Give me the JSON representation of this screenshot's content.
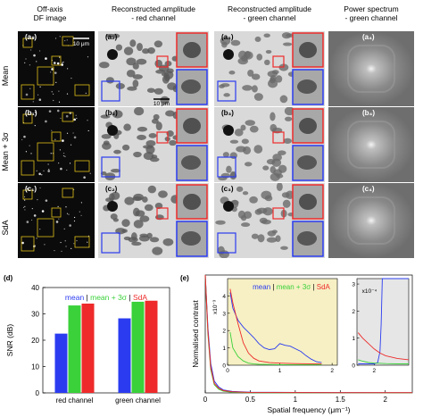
{
  "headers": {
    "col1": [
      "Off-axis",
      "DF image"
    ],
    "col2": [
      "Reconstructed amplitude",
      "- red channel"
    ],
    "col3": [
      "Reconstructed amplitude",
      "- green channel"
    ],
    "col4": [
      "Power spectrum",
      "- green channel"
    ]
  },
  "rows": [
    {
      "label": "Mean",
      "panels": [
        "(a₁)",
        "(a₂)",
        "(a₃)",
        "(a₄)"
      ]
    },
    {
      "label": "Mean + 3σ",
      "panels": [
        "(b₁)",
        "(b₂)",
        "(b₃)",
        "(b₄)"
      ]
    },
    {
      "label": "SdA",
      "panels": [
        "(c₁)",
        "(c₂)",
        "(c₃)",
        "(c₄)"
      ]
    }
  ],
  "scalebars": {
    "df": "10 μm",
    "amp": "10 μm"
  },
  "panel_d_label": "(d)",
  "panel_e_label": "(e)",
  "colors": {
    "mean": "#2b3cf0",
    "mean3s": "#3ad13a",
    "sda": "#ee2a2a",
    "inset_bg": "#f6f0c4",
    "zoom_box_red": "#ee2a2a",
    "zoom_box_blue": "#2b3cf0",
    "roi_box": "#e0c01a"
  },
  "chart_data": [
    {
      "type": "bar",
      "panel": "(d)",
      "categories": [
        "red channel",
        "green channel"
      ],
      "series": [
        {
          "name": "mean",
          "values": [
            22.5,
            28.3
          ]
        },
        {
          "name": "mean + 3σ",
          "values": [
            33.2,
            34.6
          ]
        },
        {
          "name": "SdA",
          "values": [
            33.9,
            35.0
          ]
        }
      ],
      "ylabel": "SNR (dB)",
      "xlabel": "",
      "ylim": [
        0,
        40
      ],
      "yticks": [
        0,
        10,
        20,
        30,
        40
      ],
      "legend": "top (inline: mean | mean + 3σ | SdA)"
    },
    {
      "type": "line",
      "panel": "(e)",
      "xlabel": "Spatial frequency (μm⁻¹)",
      "ylabel": "Normalised contrast",
      "xlim": [
        0,
        2.3
      ],
      "xticks": [
        0,
        0.5,
        1,
        1.5,
        2
      ],
      "ylim": [
        0,
        1
      ],
      "series": [
        {
          "name": "mean",
          "x": [
            0,
            0.03,
            0.06,
            0.1,
            0.15,
            0.2,
            0.3,
            0.5,
            1.0,
            1.5,
            2.0,
            2.3
          ],
          "y": [
            1,
            0.55,
            0.25,
            0.1,
            0.05,
            0.025,
            0.012,
            0.006,
            0.004,
            0.003,
            0.002,
            0.002
          ]
        },
        {
          "name": "mean + 3σ",
          "x": [
            0,
            0.03,
            0.06,
            0.1,
            0.15,
            0.2,
            0.3,
            0.5,
            1.0,
            1.5,
            2.0,
            2.3
          ],
          "y": [
            1,
            0.5,
            0.2,
            0.07,
            0.03,
            0.015,
            0.006,
            0.002,
            0.001,
            0.001,
            0.001,
            0.001
          ]
        },
        {
          "name": "SdA",
          "x": [
            0,
            0.03,
            0.06,
            0.1,
            0.15,
            0.2,
            0.3,
            0.5,
            1.0,
            1.5,
            2.0,
            2.3
          ],
          "y": [
            1,
            0.52,
            0.22,
            0.08,
            0.04,
            0.02,
            0.009,
            0.004,
            0.003,
            0.002,
            0.002,
            0.002
          ]
        }
      ],
      "inset1": {
        "ylabel": "x10⁻³",
        "xlim": [
          0,
          2.1
        ],
        "xticks": [
          0,
          1,
          2
        ],
        "ylim": [
          0,
          5
        ],
        "yticks": [
          0,
          1,
          2,
          3,
          4
        ],
        "legend": "top (inline: mean | mean + 3σ | SdA)",
        "series": [
          {
            "name": "mean",
            "x": [
              0.05,
              0.1,
              0.2,
              0.3,
              0.4,
              0.5,
              0.6,
              0.7,
              0.8,
              0.9,
              1.0,
              1.1,
              1.2,
              1.3,
              1.4,
              1.5,
              1.6,
              1.7,
              1.8
            ],
            "y": [
              4.2,
              3.3,
              2.6,
              2.2,
              1.9,
              1.6,
              1.25,
              1.0,
              0.9,
              0.95,
              1.25,
              1.15,
              1.1,
              0.95,
              0.8,
              0.55,
              0.35,
              0.2,
              0.15
            ]
          },
          {
            "name": "mean + 3σ",
            "x": [
              0.05,
              0.1,
              0.2,
              0.3,
              0.4,
              0.5,
              0.6,
              0.8,
              1.0,
              1.2,
              1.4,
              1.6,
              1.8
            ],
            "y": [
              1.9,
              1.0,
              0.5,
              0.25,
              0.12,
              0.07,
              0.05,
              0.04,
              0.03,
              0.03,
              0.03,
              0.03,
              0.03
            ]
          },
          {
            "name": "SdA",
            "x": [
              0.05,
              0.1,
              0.2,
              0.3,
              0.4,
              0.5,
              0.6,
              0.8,
              1.0,
              1.2,
              1.4,
              1.6,
              1.8
            ],
            "y": [
              4.4,
              3.6,
              2.4,
              1.3,
              0.7,
              0.4,
              0.25,
              0.15,
              0.12,
              0.1,
              0.09,
              0.08,
              0.08
            ]
          }
        ]
      },
      "inset2": {
        "ylabel": "x10⁻⁴",
        "xlim": [
          1.85,
          2.3
        ],
        "xticks": [
          2
        ],
        "ylim": [
          0,
          3.2
        ],
        "yticks": [
          0,
          1,
          2,
          3
        ],
        "series": [
          {
            "name": "mean",
            "x": [
              1.86,
              1.95,
              2.0,
              2.03,
              2.05,
              2.06,
              2.07,
              2.1,
              2.2,
              2.3
            ],
            "y": [
              0.05,
              0.05,
              0.05,
              0.1,
              0.5,
              1.5,
              3.2,
              3.2,
              3.2,
              3.2
            ]
          },
          {
            "name": "mean + 3σ",
            "x": [
              1.86,
              1.9,
              1.95,
              2.0,
              2.1,
              2.2,
              2.3
            ],
            "y": [
              0.2,
              0.15,
              0.1,
              0.08,
              0.06,
              0.05,
              0.05
            ]
          },
          {
            "name": "SdA",
            "x": [
              1.86,
              1.9,
              1.95,
              2.0,
              2.05,
              2.1,
              2.15,
              2.2,
              2.3
            ],
            "y": [
              1.2,
              1.0,
              0.8,
              0.6,
              0.45,
              0.35,
              0.3,
              0.25,
              0.2
            ]
          }
        ]
      }
    }
  ]
}
